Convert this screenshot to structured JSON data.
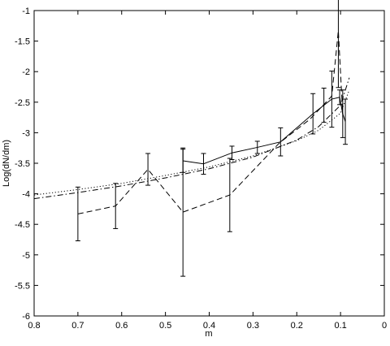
{
  "chart_data": {
    "type": "line",
    "xlabel": "m",
    "ylabel": "Log(dN/dm)",
    "xlim": [
      0.8,
      0
    ],
    "ylim": [
      -6,
      -1
    ],
    "xticks": [
      0.8,
      0.7,
      0.6,
      0.5,
      0.4,
      0.3,
      0.2,
      0.1,
      0
    ],
    "yticks": [
      -1,
      -1.5,
      -2,
      -2.5,
      -3,
      -3.5,
      -4,
      -4.5,
      -5,
      -5.5,
      -6
    ],
    "series": [
      {
        "color": "#000000",
        "linestyle": "dashed",
        "x": [
          0.7,
          0.614,
          0.54,
          0.46,
          0.353,
          0.24,
          0.17,
          0.12,
          0.105,
          0.095
        ],
        "values": [
          -4.33,
          -4.2,
          -3.6,
          -4.3,
          -4.02,
          -3.17,
          -2.78,
          -2.4,
          -1.33,
          -2.7
        ],
        "errors": [
          0.44,
          0.37,
          0.26,
          1.05,
          0.6,
          null,
          null,
          null,
          0.93,
          null
        ]
      },
      {
        "color": "#000000",
        "linestyle": "solid",
        "x": [
          0.46,
          0.413,
          0.348,
          0.29,
          0.237,
          0.163,
          0.138,
          0.12,
          0.102,
          0.095,
          0.089
        ],
        "values": [
          -3.46,
          -3.51,
          -3.33,
          -3.24,
          -3.15,
          -2.69,
          -2.55,
          -2.45,
          -2.42,
          -2.69,
          -2.82
        ],
        "errors": [
          0.19,
          0.17,
          0.11,
          0.1,
          0.23,
          0.33,
          0.28,
          0.46,
          0.12,
          0.39,
          0.37
        ]
      },
      {
        "color": "#000000",
        "linestyle": "dashdot",
        "x": [
          0.8,
          0.7,
          0.6,
          0.5,
          0.4,
          0.3,
          0.2,
          0.15,
          0.1,
          0.08
        ],
        "values": [
          -4.08,
          -3.98,
          -3.87,
          -3.74,
          -3.59,
          -3.4,
          -3.12,
          -2.9,
          -2.55,
          -2.1
        ]
      },
      {
        "color": "#000000",
        "linestyle": "dotted",
        "x": [
          0.8,
          0.7,
          0.6,
          0.5,
          0.4,
          0.3,
          0.2,
          0.15,
          0.1,
          0.08
        ],
        "values": [
          -4.02,
          -3.93,
          -3.83,
          -3.7,
          -3.56,
          -3.38,
          -3.13,
          -2.96,
          -2.68,
          -2.3
        ]
      }
    ]
  }
}
